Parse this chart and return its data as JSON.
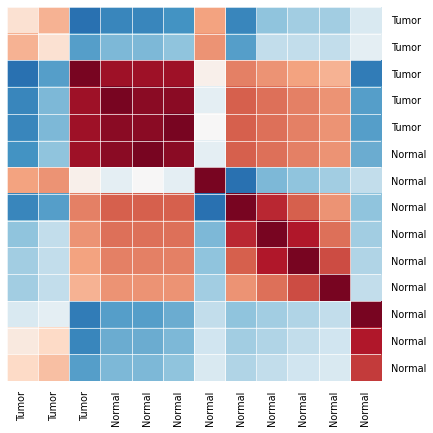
{
  "matrix": [
    [
      0.15,
      0.35,
      -0.75,
      -0.65,
      -0.65,
      -0.6,
      0.4,
      -0.65,
      -0.4,
      -0.35,
      -0.35,
      -0.15
    ],
    [
      0.35,
      0.15,
      -0.55,
      -0.45,
      -0.45,
      -0.4,
      0.45,
      -0.55,
      -0.25,
      -0.25,
      -0.25,
      -0.1
    ],
    [
      -0.75,
      -0.55,
      0.95,
      0.85,
      0.85,
      0.85,
      0.05,
      0.5,
      0.45,
      0.4,
      0.35,
      -0.7
    ],
    [
      -0.65,
      -0.45,
      0.85,
      0.95,
      0.9,
      0.9,
      -0.1,
      0.6,
      0.55,
      0.5,
      0.45,
      -0.55
    ],
    [
      -0.65,
      -0.45,
      0.85,
      0.9,
      0.9,
      0.95,
      0.0,
      0.6,
      0.55,
      0.5,
      0.45,
      -0.55
    ],
    [
      -0.6,
      -0.4,
      0.85,
      0.9,
      0.95,
      0.9,
      -0.1,
      0.6,
      0.55,
      0.5,
      0.45,
      -0.5
    ],
    [
      0.4,
      0.45,
      0.05,
      -0.1,
      0.0,
      -0.1,
      0.95,
      -0.75,
      -0.45,
      -0.4,
      -0.35,
      -0.25
    ],
    [
      -0.65,
      -0.55,
      0.5,
      0.6,
      0.6,
      0.6,
      -0.75,
      0.95,
      0.75,
      0.6,
      0.45,
      -0.4
    ],
    [
      -0.4,
      -0.25,
      0.45,
      0.55,
      0.55,
      0.55,
      -0.45,
      0.75,
      0.95,
      0.8,
      0.55,
      -0.35
    ],
    [
      -0.35,
      -0.25,
      0.4,
      0.5,
      0.5,
      0.5,
      -0.4,
      0.6,
      0.8,
      0.95,
      0.65,
      -0.3
    ],
    [
      -0.35,
      -0.25,
      0.35,
      0.45,
      0.45,
      0.45,
      -0.35,
      0.45,
      0.55,
      0.65,
      0.95,
      -0.25
    ],
    [
      -0.15,
      -0.1,
      -0.7,
      -0.55,
      -0.55,
      -0.5,
      -0.25,
      -0.4,
      -0.35,
      -0.3,
      -0.25,
      0.95
    ],
    [
      0.1,
      0.2,
      -0.65,
      -0.5,
      -0.5,
      -0.45,
      -0.2,
      -0.35,
      -0.3,
      -0.25,
      -0.2,
      0.8
    ],
    [
      0.2,
      0.3,
      -0.55,
      -0.45,
      -0.45,
      -0.4,
      -0.15,
      -0.3,
      -0.25,
      -0.2,
      -0.15,
      0.7
    ]
  ],
  "xlabels": [
    "Tumor",
    "Tumor",
    "Tumor",
    "Normal",
    "Normal",
    "Normal",
    "Normal",
    "Normal",
    "Normal",
    "Normal",
    "Normal",
    "Normal"
  ],
  "ylabels": [
    "Tumor",
    "Tumor",
    "Tumor",
    "Tumor",
    "Tumor",
    "Normal",
    "Normal",
    "Normal",
    "Normal",
    "Normal",
    "Normal",
    "Normal",
    "Normal",
    "Normal"
  ],
  "vmin": -1.0,
  "vmax": 1.0,
  "colormap": "RdBu_r",
  "figsize": [
    4.33,
    4.33
  ],
  "dpi": 100,
  "title_fontsize": 7,
  "tick_fontsize": 7,
  "grid_color": "#f0f0f0",
  "grid_lw": 0.5
}
